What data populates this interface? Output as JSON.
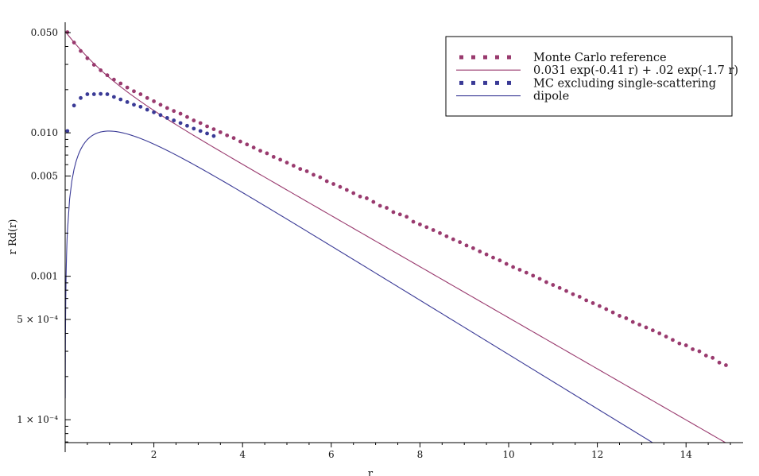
{
  "chart_data": {
    "type": "scatter",
    "xlabel": "r",
    "ylabel": "r Rd(r)",
    "xlim": [
      0,
      15
    ],
    "ylim": [
      7e-05,
      0.055
    ],
    "y_scale": "log",
    "grid": false,
    "legend_position": "top-right",
    "x_ticks": [
      {
        "value": 2,
        "label": "2"
      },
      {
        "value": 4,
        "label": "4"
      },
      {
        "value": 6,
        "label": "6"
      },
      {
        "value": 8,
        "label": "8"
      },
      {
        "value": 10,
        "label": "10"
      },
      {
        "value": 12,
        "label": "12"
      },
      {
        "value": 14,
        "label": "14"
      }
    ],
    "y_ticks": [
      {
        "value": 0.05,
        "label": "0.050"
      },
      {
        "value": 0.01,
        "label": "0.010"
      },
      {
        "value": 0.005,
        "label": "0.005"
      },
      {
        "value": 0.001,
        "label": "0.001"
      },
      {
        "value": 0.0005,
        "label": "5 × 10⁻⁴"
      },
      {
        "value": 0.0001,
        "label": "1 × 10⁻⁴"
      }
    ],
    "series": [
      {
        "name": "Monte Carlo reference",
        "kind": "points",
        "color": "#993a6e",
        "x": [
          0.05,
          0.2,
          0.35,
          0.5,
          0.65,
          0.8,
          0.95,
          1.1,
          1.25,
          1.4,
          1.55,
          1.7,
          1.85,
          2.0,
          2.15,
          2.3,
          2.45,
          2.6,
          2.75,
          2.9,
          3.05,
          3.2,
          3.35,
          3.5,
          3.65,
          3.8,
          3.95,
          4.1,
          4.25,
          4.4,
          4.55,
          4.7,
          4.85,
          5.0,
          5.15,
          5.3,
          5.45,
          5.6,
          5.75,
          5.9,
          6.05,
          6.2,
          6.35,
          6.5,
          6.65,
          6.8,
          6.95,
          7.1,
          7.25,
          7.4,
          7.55,
          7.7,
          7.85,
          8.0,
          8.15,
          8.3,
          8.45,
          8.6,
          8.75,
          8.9,
          9.05,
          9.2,
          9.35,
          9.5,
          9.65,
          9.8,
          9.95,
          10.1,
          10.25,
          10.4,
          10.55,
          10.7,
          10.85,
          11.0,
          11.15,
          11.3,
          11.45,
          11.6,
          11.75,
          11.9,
          12.05,
          12.2,
          12.35,
          12.5,
          12.65,
          12.8,
          12.95,
          13.1,
          13.25,
          13.4,
          13.55,
          13.7,
          13.85,
          14.0,
          14.15,
          14.3,
          14.45,
          14.6,
          14.75,
          14.9
        ],
        "y": [
          0.0503,
          0.0426,
          0.0372,
          0.0331,
          0.0298,
          0.0273,
          0.0252,
          0.0235,
          0.0221,
          0.0207,
          0.0195,
          0.0186,
          0.0175,
          0.0166,
          0.0157,
          0.0149,
          0.0142,
          0.0136,
          0.0129,
          0.0122,
          0.0117,
          0.0111,
          0.0106,
          0.0101,
          0.0096,
          0.0092,
          0.0087,
          0.0083,
          0.0079,
          0.0075,
          0.0072,
          0.0068,
          0.0065,
          0.0062,
          0.0059,
          0.0056,
          0.0054,
          0.0051,
          0.0049,
          0.0046,
          0.0044,
          0.0042,
          0.004,
          0.0038,
          0.0036,
          0.0035,
          0.0033,
          0.0031,
          0.003,
          0.0028,
          0.0027,
          0.0026,
          0.0024,
          0.0023,
          0.0022,
          0.0021,
          0.002,
          0.0019,
          0.00181,
          0.00173,
          0.00164,
          0.00157,
          0.00149,
          0.00142,
          0.00135,
          0.00129,
          0.00122,
          0.00116,
          0.00111,
          0.00106,
          0.00101,
          0.00096,
          0.00091,
          0.00087,
          0.00083,
          0.00079,
          0.00075,
          0.00072,
          0.00068,
          0.00065,
          0.00062,
          0.00059,
          0.00056,
          0.00053,
          0.00051,
          0.00048,
          0.00046,
          0.00044,
          0.00042,
          0.0004,
          0.00038,
          0.00036,
          0.00034,
          0.00033,
          0.00031,
          0.0003,
          0.00028,
          0.00027,
          0.00025,
          0.00024
        ]
      },
      {
        "name": "0.031 exp(-0.41 r) + .02 exp(-1.7 r)",
        "kind": "line",
        "color": "#993a6e",
        "formula": {
          "a": 0.031,
          "b": -0.41,
          "c": 0.02,
          "d": -1.7
        }
      },
      {
        "name": "MC excluding single-scattering",
        "kind": "points",
        "color": "#3a3a96",
        "x": [
          0.05,
          0.2,
          0.35,
          0.5,
          0.65,
          0.8,
          0.95,
          1.1,
          1.25,
          1.4,
          1.55,
          1.7,
          1.85,
          2.0,
          2.15,
          2.3,
          2.45,
          2.6,
          2.75,
          2.9,
          3.05,
          3.2,
          3.35
        ],
        "y": [
          0.0103,
          0.0155,
          0.0175,
          0.0186,
          0.0186,
          0.0187,
          0.0186,
          0.0178,
          0.0171,
          0.0164,
          0.0157,
          0.0152,
          0.0145,
          0.0139,
          0.0133,
          0.0127,
          0.0122,
          0.0117,
          0.0112,
          0.0107,
          0.0103,
          0.0099,
          0.0095
        ]
      },
      {
        "name": "dipole",
        "kind": "line",
        "color": "#3a3a96"
      }
    ]
  },
  "legend": [
    {
      "label": "Monte Carlo reference",
      "style": "points",
      "color": "#993a6e"
    },
    {
      "label": "0.031 exp(-0.41 r) + .02 exp(-1.7 r)",
      "style": "line",
      "color": "#993a6e"
    },
    {
      "label": "MC excluding single-scattering",
      "style": "points",
      "color": "#3a3a96"
    },
    {
      "label": "dipole",
      "style": "line",
      "color": "#3a3a96"
    }
  ]
}
